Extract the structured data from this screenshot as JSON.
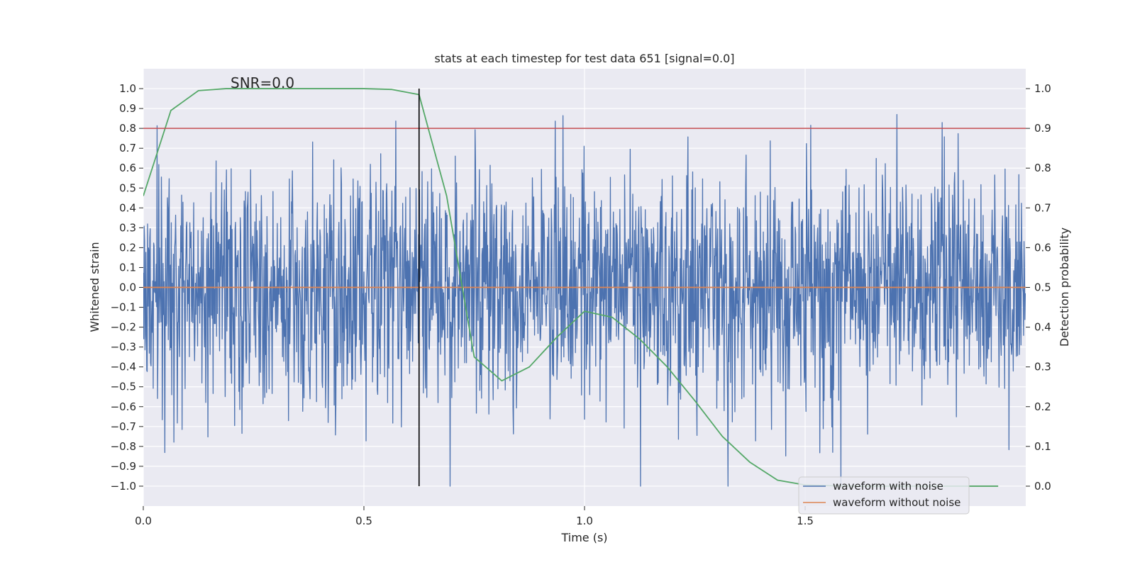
{
  "chart_data": {
    "type": "line",
    "title": "stats at each timestep for test data 651 [signal=0.0]",
    "annotation": "SNR=0.0",
    "xlabel": "Time (s)",
    "ylabel_left": "Whitened strain",
    "ylabel_right": "Detection probability",
    "xlim": [
      0.0,
      2.0
    ],
    "ylim_left": [
      -1.1,
      1.1
    ],
    "ylim_right": [
      -0.05,
      1.05
    ],
    "x_ticks": [
      0.0,
      0.5,
      1.0,
      1.5
    ],
    "x_tick_labels": [
      "0.0",
      "0.5",
      "1.0",
      "1.5"
    ],
    "y_left_ticks": [
      1.0,
      0.9,
      0.8,
      0.7,
      0.6,
      0.5,
      0.4,
      0.3,
      0.2,
      0.1,
      0.0,
      -0.1,
      -0.2,
      -0.3,
      -0.4,
      -0.5,
      -0.6,
      -0.7,
      -0.8,
      -0.9,
      -1.0
    ],
    "y_left_tick_labels": [
      "1.0",
      "0.9",
      "0.8",
      "0.7",
      "0.6",
      "0.5",
      "0.4",
      "0.3",
      "0.2",
      "0.1",
      "0.0",
      "−0.1",
      "−0.2",
      "−0.3",
      "−0.4",
      "−0.5",
      "−0.6",
      "−0.7",
      "−0.8",
      "−0.9",
      "−1.0"
    ],
    "y_right_ticks": [
      1.0,
      0.9,
      0.8,
      0.7,
      0.6,
      0.5,
      0.4,
      0.3,
      0.2,
      0.1,
      0.0
    ],
    "y_right_tick_labels": [
      "1.0",
      "0.9",
      "0.8",
      "0.7",
      "0.6",
      "0.5",
      "0.4",
      "0.3",
      "0.2",
      "0.1",
      "0.0"
    ],
    "threshold_line": {
      "axis": "right",
      "value": 0.9,
      "color": "#c44e52"
    },
    "vertical_marker": {
      "x": 0.625,
      "y_range": [
        -1.0,
        1.0
      ],
      "color": "#000000"
    },
    "series": [
      {
        "name": "waveform with noise",
        "axis": "left",
        "color": "#4c72b0",
        "in_legend": true,
        "generator": "noise",
        "n_points": 2048,
        "seed": 651
      },
      {
        "name": "waveform without noise",
        "axis": "left",
        "color": "#dd8452",
        "in_legend": true,
        "x": [
          0.0,
          2.0
        ],
        "y": [
          0.0,
          0.0
        ]
      },
      {
        "name": "detection probability",
        "axis": "right",
        "color": "#55a868",
        "in_legend": false,
        "x": [
          0.0,
          0.0625,
          0.125,
          0.1875,
          0.25,
          0.3125,
          0.375,
          0.4375,
          0.5,
          0.5625,
          0.625,
          0.6875,
          0.75,
          0.8125,
          0.875,
          0.9375,
          1.0,
          1.0625,
          1.125,
          1.1875,
          1.25,
          1.3125,
          1.375,
          1.4375,
          1.5,
          1.5625,
          1.625,
          1.6875,
          1.75,
          1.8125,
          1.875,
          1.9375
        ],
        "y": [
          0.73,
          0.945,
          0.995,
          1.0,
          1.0,
          1.0,
          1.0,
          1.0,
          1.0,
          0.998,
          0.985,
          0.73,
          0.325,
          0.265,
          0.3,
          0.375,
          0.44,
          0.425,
          0.37,
          0.3,
          0.215,
          0.125,
          0.06,
          0.015,
          0.003,
          0.001,
          0.0,
          0.0,
          0.0,
          0.0,
          0.0,
          0.0
        ]
      }
    ],
    "legend_position": "bottom-right"
  }
}
